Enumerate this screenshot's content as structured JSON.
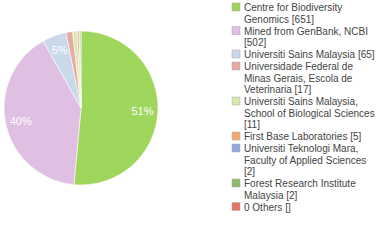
{
  "chart_data": {
    "type": "pie",
    "categories": [
      "Centre for Biodiversity Genomics [651]",
      "Mined from GenBank, NCBI [502]",
      "Universiti Sains Malaysia [65]",
      "Universidade Federal de Minas Gerais, Escola de Veterinaria [17]",
      "Universiti Sains Malaysia, School of Biological Sciences [11]",
      "First Base Laboratories [5]",
      "Universiti Teknologi Mara, Faculty of Applied Sciences [2]",
      "Forest Research Institute Malaysia [2]",
      "0 Others []"
    ],
    "values": [
      51,
      40,
      5,
      1.4,
      0.9,
      0.4,
      0.2,
      0.2,
      0
    ],
    "value_labels": [
      "51%",
      "40%",
      "5%",
      null,
      null,
      null,
      null,
      null,
      null
    ],
    "data_labels": true,
    "colors": [
      "#9fd65c",
      "#dfc0e2",
      "#c9d9ea",
      "#e8aba4",
      "#d9e8ad",
      "#f1aa6c",
      "#93aad8",
      "#8aba6a",
      "#e27563"
    ]
  }
}
